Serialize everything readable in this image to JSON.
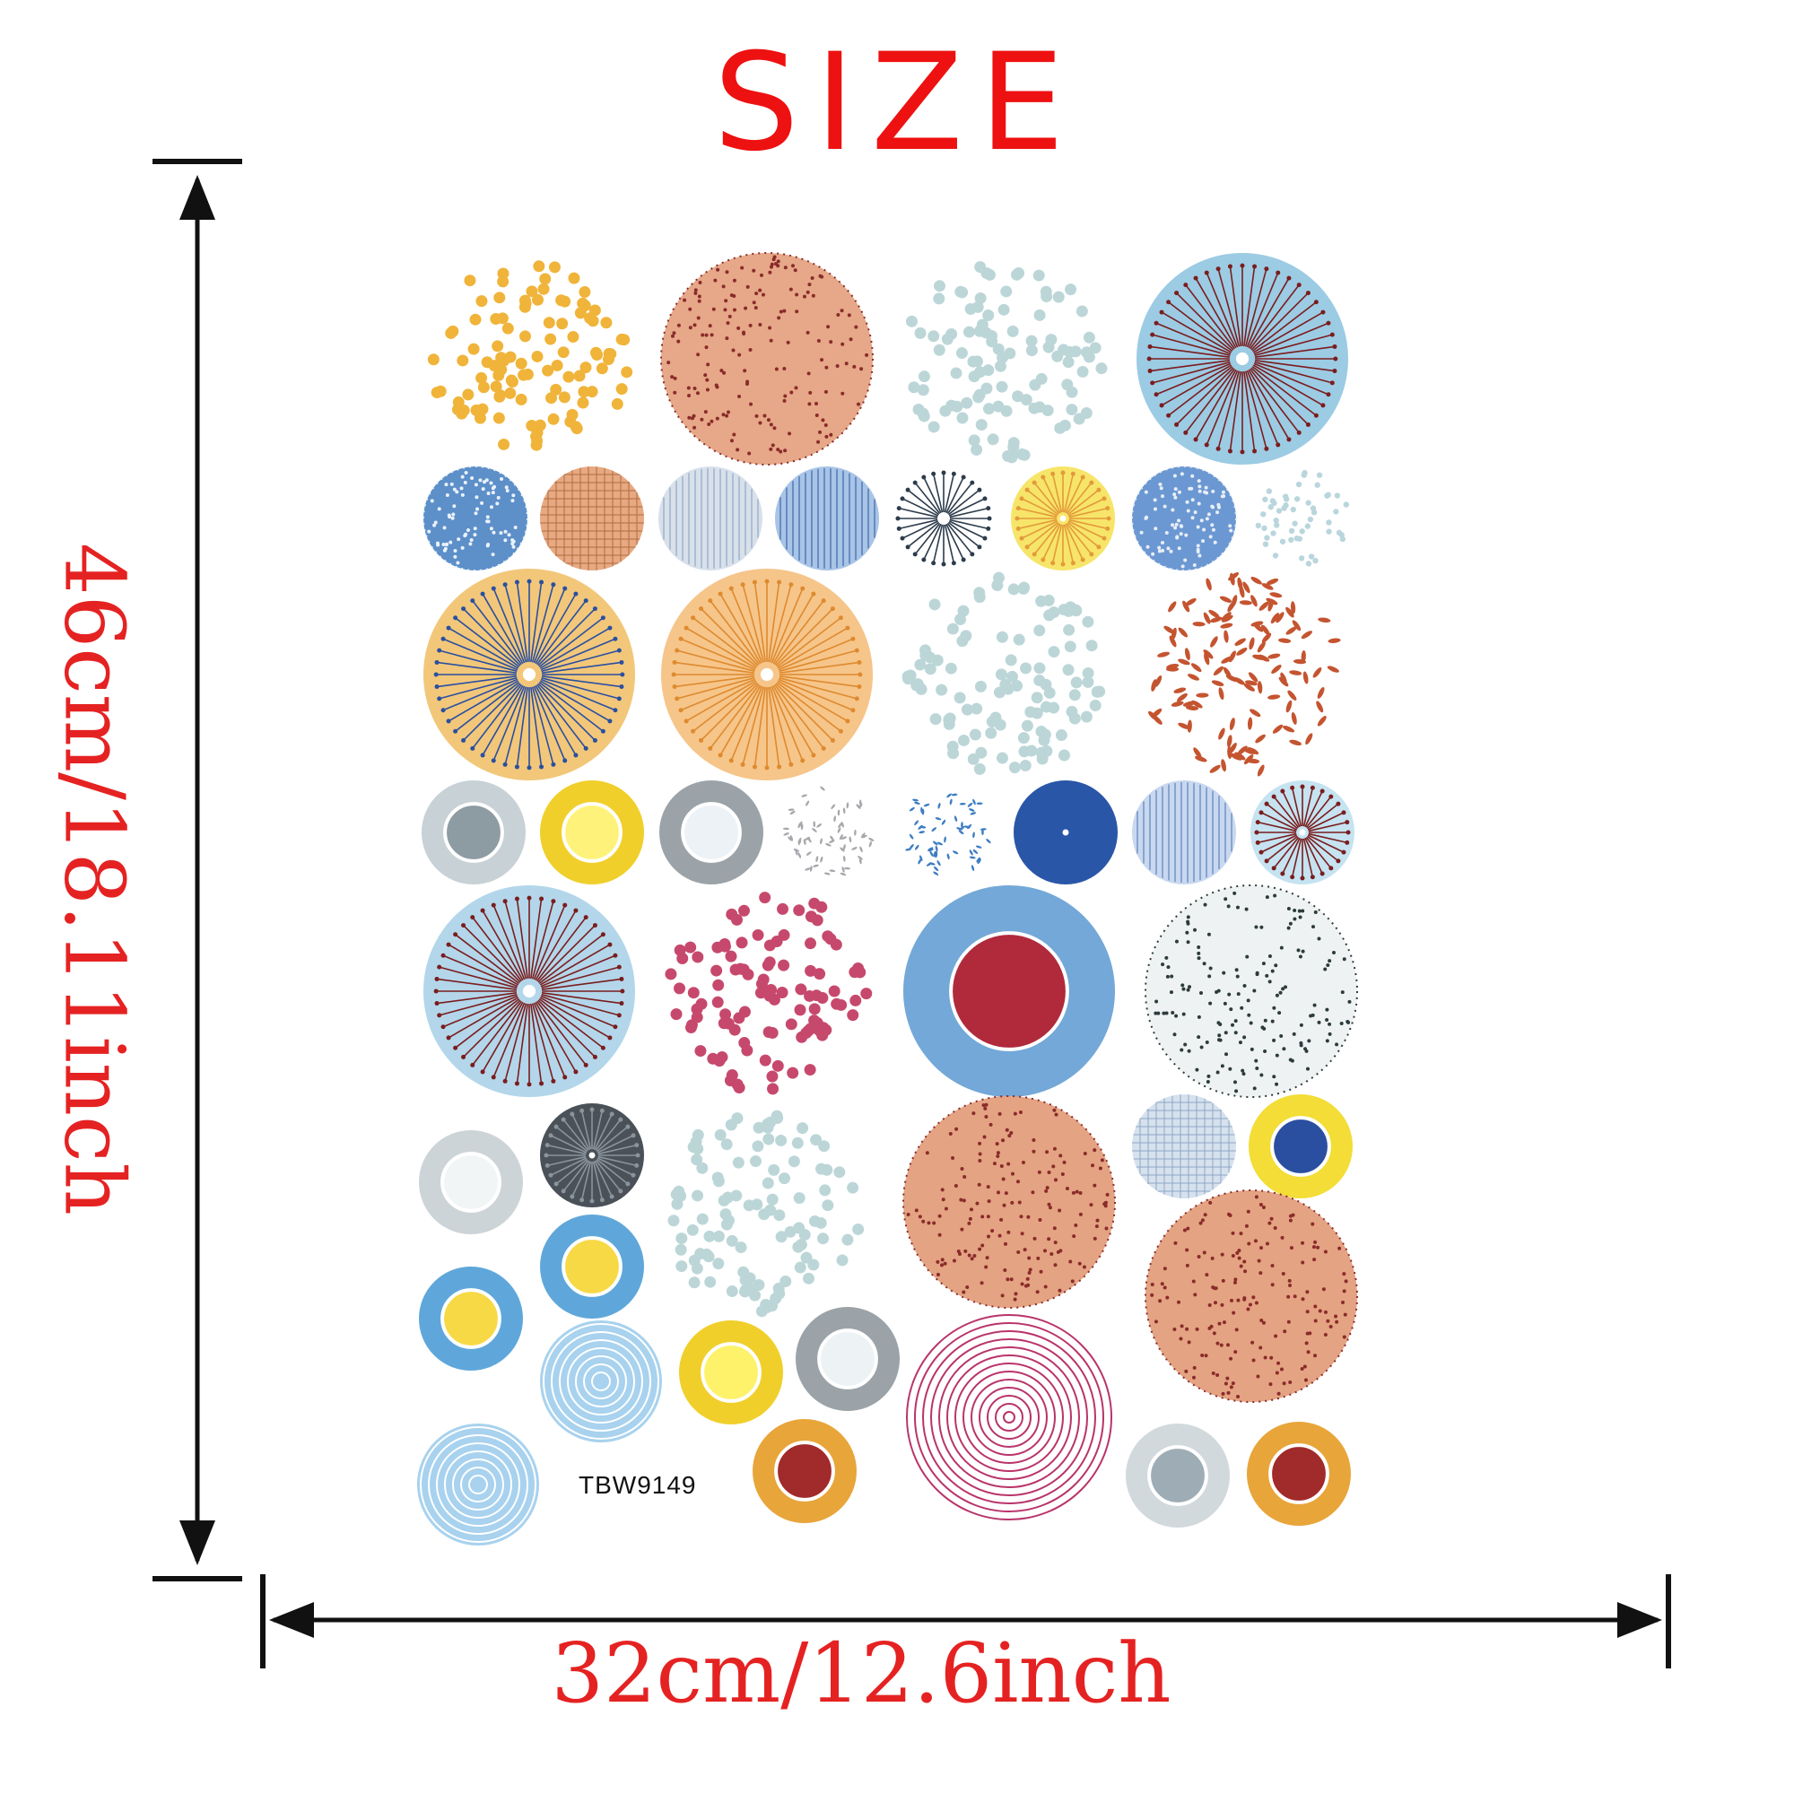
{
  "title": "SIZE",
  "height_label": "46cm/18.11inch",
  "width_label": "32cm/12.6inch",
  "product_code": "TBW9149",
  "colors": {
    "title": "#ee1111",
    "dimension_text": "#e52222",
    "arrows": "#111111"
  },
  "stickers": [
    {
      "style": "dots",
      "main": "#f0b43a",
      "accent": "#f0b43a"
    },
    {
      "style": "stipple",
      "main": "#e6a888",
      "accent": "#8a2b2b"
    },
    {
      "style": "dots",
      "main": "#bcd6d8",
      "accent": "#bcd6d8"
    },
    {
      "style": "rays",
      "main": "#9ccbe4",
      "accent": "#7a1d1d"
    },
    {
      "style": "stipple",
      "main": "#5d8fc9",
      "accent": "#eaf2fb"
    },
    {
      "style": "hatch",
      "main": "#e7a982",
      "accent": "#b06c3e"
    },
    {
      "style": "lines",
      "main": "#d8e0ea",
      "accent": "#8ea7c4"
    },
    {
      "style": "lines",
      "main": "#a8c4e6",
      "accent": "#3e68a8"
    },
    {
      "style": "rays",
      "main": "#ffffff",
      "accent": "#2d3c4c"
    },
    {
      "style": "rays",
      "main": "#f7e56a",
      "accent": "#e39a3a"
    },
    {
      "style": "stipple",
      "main": "#6b98d2",
      "accent": "#e8eef7"
    },
    {
      "style": "dots",
      "main": "#ffffff",
      "accent": "#b9d6dc"
    },
    {
      "style": "rays",
      "main": "#f2c77a",
      "accent": "#2a4fa0"
    },
    {
      "style": "rays",
      "main": "#f6c58a",
      "accent": "#de8a2e"
    },
    {
      "style": "dots",
      "main": "#bcd6d8",
      "accent": "#bcd6d8"
    },
    {
      "style": "dashes",
      "main": "#ffffff",
      "accent": "#c45430"
    },
    {
      "style": "ring",
      "main": "#8d9ba3",
      "accent": "#c7d1d6"
    },
    {
      "style": "ring",
      "main": "#fff27a",
      "accent": "#f0cf2a"
    },
    {
      "style": "ring",
      "main": "#ecf2f6",
      "accent": "#9ba3a8"
    },
    {
      "style": "dashes",
      "main": "#ffffff",
      "accent": "#a6a8ac"
    },
    {
      "style": "dashes",
      "main": "#ffffff",
      "accent": "#3d7dc2"
    },
    {
      "style": "rays",
      "main": "#2a56a8",
      "accent": "#2a56a8"
    },
    {
      "style": "lines",
      "main": "#c8d8ef",
      "accent": "#5d82bd"
    },
    {
      "style": "rays",
      "main": "#c5e3f1",
      "accent": "#7a1d1d"
    },
    {
      "style": "rays",
      "main": "#b3d6ea",
      "accent": "#7a1d1d"
    },
    {
      "style": "dots",
      "main": "#c6496d",
      "accent": "#c6496d"
    },
    {
      "style": "ring",
      "main": "#b02a3c",
      "accent": "#73a8d8"
    },
    {
      "style": "stipple",
      "main": "#eef2f2",
      "accent": "#2e3b3b"
    },
    {
      "style": "ring",
      "main": "#f2f5f6",
      "accent": "#cdd4d8"
    },
    {
      "style": "rays",
      "main": "#4a5158",
      "accent": "#8b949b"
    },
    {
      "style": "dots",
      "main": "#bcd6d8",
      "accent": "#bcd6d8"
    },
    {
      "style": "stipple",
      "main": "#e4a382",
      "accent": "#8a2b2b"
    },
    {
      "style": "hatch",
      "main": "#d6e1ee",
      "accent": "#8da6c4"
    },
    {
      "style": "ring",
      "main": "#2a4fa0",
      "accent": "#f3dd36"
    },
    {
      "style": "ring",
      "main": "#f7d946",
      "accent": "#5fa7da"
    },
    {
      "style": "ring",
      "main": "#f7d946",
      "accent": "#5fa7da"
    },
    {
      "style": "stipple",
      "main": "#e4a382",
      "accent": "#8a2b2b"
    },
    {
      "style": "circles",
      "main": "#a8d2ee",
      "accent": "#ffffff"
    },
    {
      "style": "ring",
      "main": "#fdf26a",
      "accent": "#f0cf2a"
    },
    {
      "style": "ring",
      "main": "#edf2f5",
      "accent": "#9ba3a8"
    },
    {
      "style": "circles",
      "main": "#ffffff",
      "accent": "#b9346a"
    },
    {
      "style": "circles",
      "main": "#a8d2ee",
      "accent": "#ffffff"
    },
    {
      "style": "ring",
      "main": "#a12a2a",
      "accent": "#e8a53a"
    },
    {
      "style": "ring",
      "main": "#9eadb5",
      "accent": "#d2d9dd"
    },
    {
      "style": "ring",
      "main": "#a12a2a",
      "accent": "#e8a53a"
    }
  ]
}
